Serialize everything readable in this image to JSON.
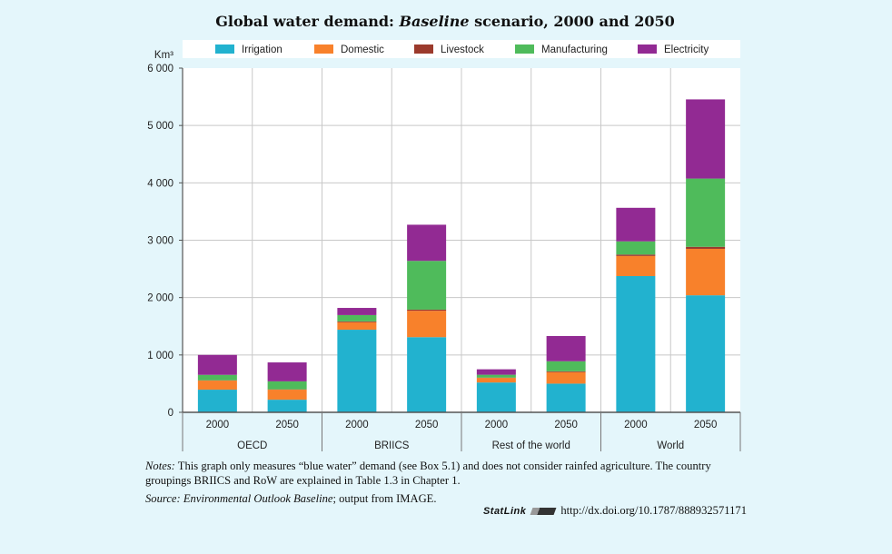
{
  "chart_data": {
    "type": "bar",
    "stacked": true,
    "title_parts": [
      "Global water demand: ",
      "Baseline",
      " scenario, 2000 and 2050"
    ],
    "title": "Global water demand: Baseline scenario, 2000 and 2050",
    "ylabel": "Km³",
    "xlabel": "",
    "ylim": [
      0,
      6000
    ],
    "yticks": [
      0,
      1000,
      2000,
      3000,
      4000,
      5000,
      6000
    ],
    "ytick_labels": [
      "0",
      "1 000",
      "2 000",
      "3 000",
      "4 000",
      "5 000",
      "6 000"
    ],
    "grid": true,
    "legend_position": "top",
    "groups": [
      "OECD",
      "BRIICS",
      "Rest of the world",
      "World"
    ],
    "categories": [
      "2000",
      "2050",
      "2000",
      "2050",
      "2000",
      "2050",
      "2000",
      "2050"
    ],
    "series": [
      {
        "name": "Irrigation",
        "color": "#22b2cf",
        "values": [
          395,
          220,
          1440,
          1310,
          520,
          500,
          2375,
          2040
        ]
      },
      {
        "name": "Domestic",
        "color": "#f8812b",
        "values": [
          158,
          175,
          130,
          460,
          80,
          200,
          350,
          810
        ]
      },
      {
        "name": "Livestock",
        "color": "#9b3a2c",
        "values": [
          5,
          5,
          15,
          20,
          5,
          15,
          25,
          35
        ]
      },
      {
        "name": "Manufacturing",
        "color": "#4fbb5b",
        "values": [
          95,
          140,
          110,
          850,
          50,
          175,
          230,
          1190
        ]
      },
      {
        "name": "Electricity",
        "color": "#922a93",
        "values": [
          348,
          330,
          125,
          630,
          95,
          440,
          585,
          1380
        ]
      }
    ]
  },
  "notes": {
    "notes_label": "Notes:",
    "notes_text": " This graph only measures “blue water” demand (see Box 5.1) and does not consider rainfed agriculture. The country groupings BRIICS and RoW are explained in Table 1.3 in Chapter 1.",
    "source_label": "Source:",
    "source_italic": "Environmental Outlook Baseline",
    "source_text": "; output from IMAGE."
  },
  "statlink": {
    "label": "StatLink",
    "url": "http://dx.doi.org/10.1787/888932571171"
  }
}
